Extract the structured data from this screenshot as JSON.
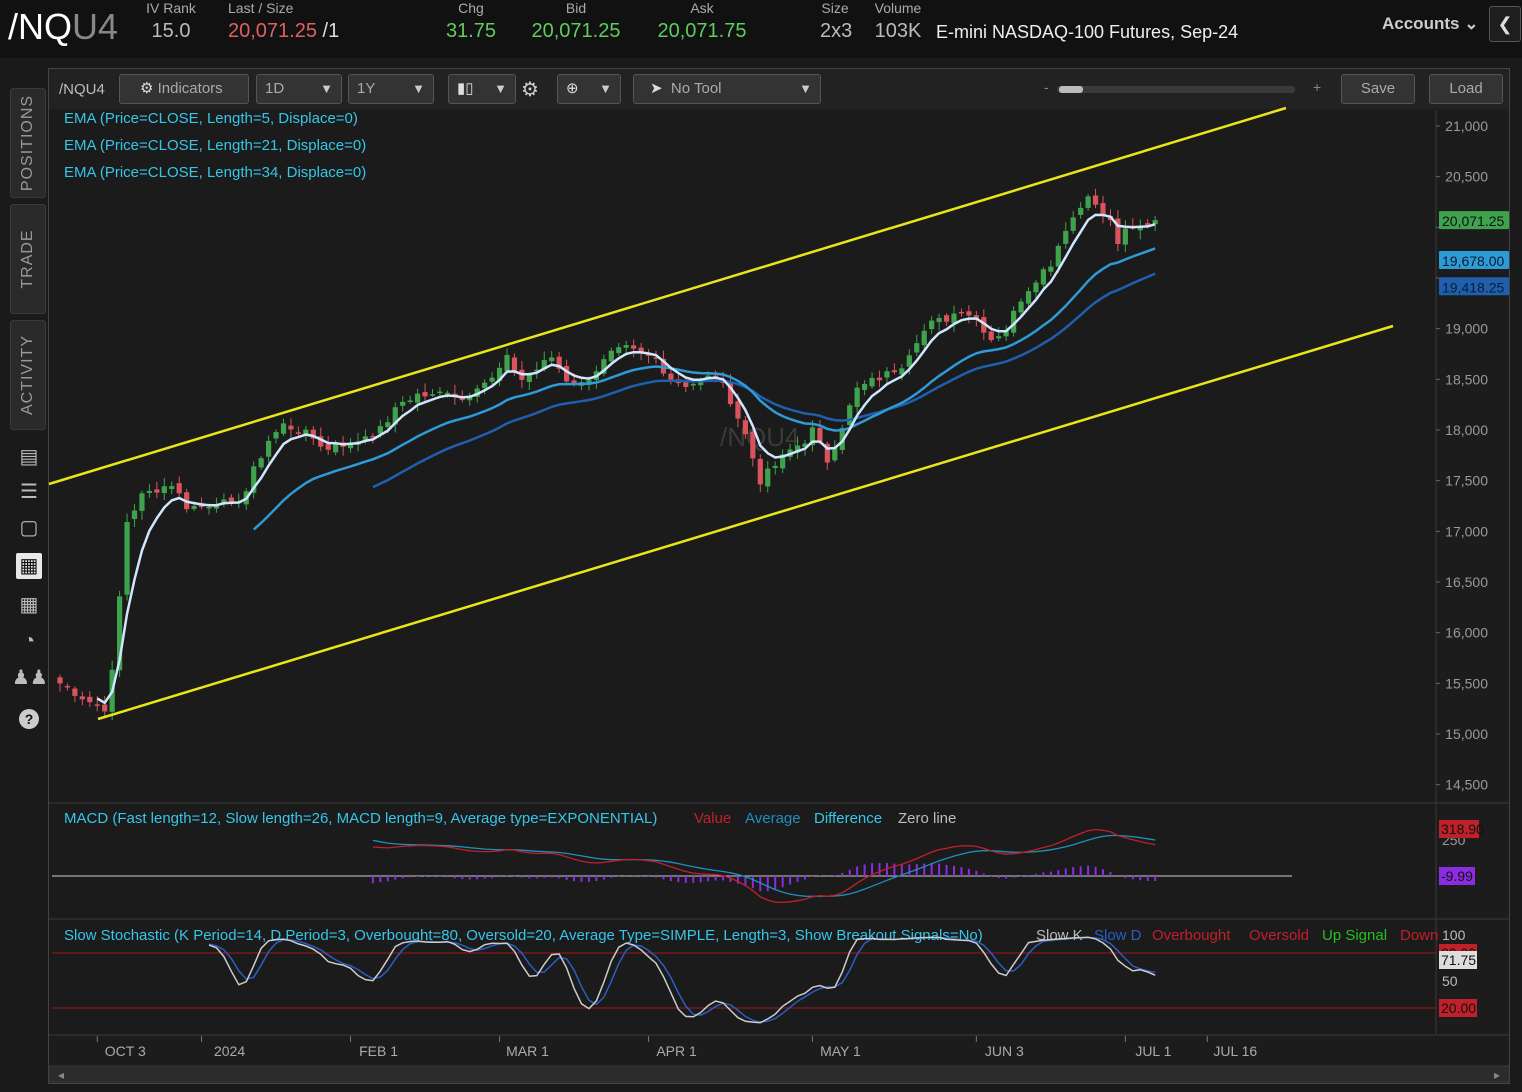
{
  "header": {
    "symbol_main": "/NQ",
    "symbol_suffix": "U4",
    "fields": [
      {
        "label": "IV Rank",
        "value": "15.0",
        "tone": "muted"
      },
      {
        "label": "Last / Size",
        "value": "20,071.25",
        "suffix": " /1",
        "tone": "neg"
      },
      {
        "label": "Chg",
        "value": "31.75",
        "tone": "pos"
      },
      {
        "label": "Bid",
        "value": "20,071.25",
        "tone": "pos"
      },
      {
        "label": "Ask",
        "value": "20,071.75",
        "tone": "pos"
      },
      {
        "label": "Size",
        "value": "2x3",
        "tone": "muted"
      },
      {
        "label": "Volume",
        "value": "103K",
        "tone": "muted"
      }
    ],
    "contract_name": "E-mini NASDAQ-100 Futures, Sep-24",
    "accounts_label": "Accounts",
    "collapse_icon": "chevron-left-icon"
  },
  "sidebar": {
    "tabs": [
      "POSITIONS",
      "TRADE",
      "ACTIVITY"
    ],
    "icons": [
      "news-icon",
      "list-icon",
      "tv-icon",
      "chart-drawing-icon",
      "grid-icon",
      "gauge-icon",
      "people-icon",
      "help-icon"
    ]
  },
  "toolbar": {
    "symbol": "/NQU4",
    "indicators_label": "Indicators",
    "interval": "1D",
    "range": "1Y",
    "tool": "No Tool",
    "zoom_minus": "-",
    "zoom_plus": "+",
    "save_label": "Save",
    "load_label": "Load"
  },
  "watermark": "/NQU4",
  "studies": {
    "ema": [
      "EMA (Price=CLOSE, Length=5, Displace=0)",
      "EMA (Price=CLOSE, Length=21, Displace=0)",
      "EMA (Price=CLOSE, Length=34, Displace=0)"
    ],
    "macd": {
      "title": "MACD (Fast length=12, Slow length=26, MACD length=9, Average type=EXPONENTIAL)",
      "legend": [
        "Value",
        "Average",
        "Difference",
        "Zero line"
      ],
      "tick": "250",
      "value_badge": "318.90",
      "diff_badge": "-9.99"
    },
    "stoch": {
      "title": "Slow Stochastic (K Period=14, D Period=3, Overbought=80, Oversold=20, Average Type=SIMPLE, Length=3, Show Breakout Signals=No)",
      "legend": [
        "Slow K",
        "Slow D",
        "Overbought",
        "Oversold",
        "Up Signal",
        "Down"
      ],
      "ticks": [
        "100",
        "50"
      ],
      "k_badge": "71.75",
      "ob_badge": "80.00",
      "os_badge": "20.00"
    }
  },
  "colors": {
    "up": "#3fa34d",
    "down": "#d9535c",
    "ema5": "#cfe6ff",
    "ema21": "#2e9bd6",
    "ema34": "#1f5fae",
    "channel": "#e8e61a",
    "study_title": "#36c6e8",
    "macd_value": "#c0202a",
    "macd_avg": "#1f8fbf",
    "macd_diff": "#8b2be2",
    "stoch_k": "#cccccc",
    "stoch_d": "#2a5ec2"
  },
  "chart_data": {
    "type": "candlestick",
    "ylim": [
      14300,
      21200
    ],
    "yticks": [
      14500,
      15000,
      15500,
      16000,
      16500,
      17000,
      17500,
      18000,
      18500,
      19000,
      19500,
      20000,
      20500,
      21000
    ],
    "ytick_labels": [
      "14,500",
      "15,000",
      "15,500",
      "16,000",
      "16,500",
      "17,000",
      "17,500",
      "18,000",
      "18,500",
      "19,000",
      "",
      "",
      "20,500",
      "21,000"
    ],
    "xticks": [
      {
        "label": "OCT 3",
        "bar": 5
      },
      {
        "label": "2024",
        "bar": 19
      },
      {
        "label": "FEB 1",
        "bar": 39
      },
      {
        "label": "MAR 1",
        "bar": 59
      },
      {
        "label": "APR 1",
        "bar": 79
      },
      {
        "label": "MAY 1",
        "bar": 101
      },
      {
        "label": "JUN 3",
        "bar": 123
      },
      {
        "label": "JUL 1",
        "bar": 143
      },
      {
        "label": "JUL 16",
        "bar": 154
      }
    ],
    "price_badges": [
      {
        "value": "20,071.25",
        "y": 20071,
        "color": "#3fa34d"
      },
      {
        "value": "19,678.00",
        "y": 19678,
        "color": "#2e9bd6"
      },
      {
        "value": "19,418.25",
        "y": 19418,
        "color": "#1f5fae"
      }
    ],
    "bars": [],
    "channel": {
      "upper": [
        [
          -1,
          17450
        ],
        [
          133,
          21190
        ]
      ],
      "lower": [
        [
          5,
          15150
        ],
        [
          141,
          19030
        ]
      ]
    }
  }
}
